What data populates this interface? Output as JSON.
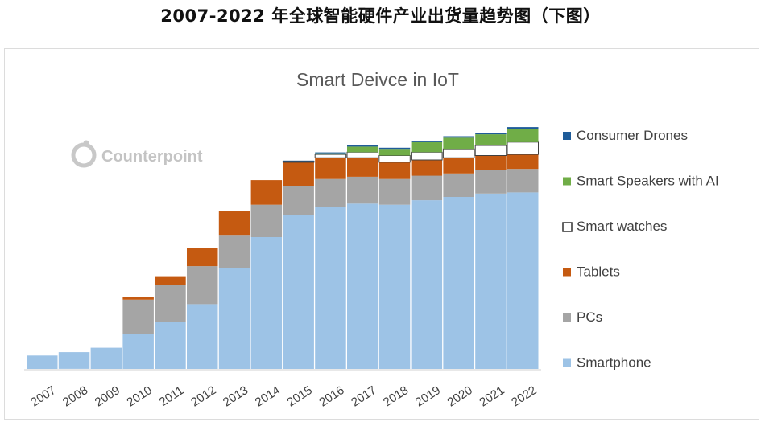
{
  "page_title": "2007-2022 年全球智能硬件产业出货量趋势图（下图）",
  "watermark": "Counterpoint",
  "chart_data": {
    "type": "bar",
    "stacked": true,
    "title": "Smart Deivce in IoT",
    "categories": [
      "2007",
      "2008",
      "2009",
      "2010",
      "2011",
      "2012",
      "2013",
      "2014",
      "2015",
      "2016",
      "2017",
      "2018",
      "2019",
      "2020",
      "2021",
      "2022"
    ],
    "series": [
      {
        "name": "Smartphone",
        "color": "#9dc3e6",
        "values": [
          0.12,
          0.15,
          0.19,
          0.31,
          0.42,
          0.58,
          0.9,
          1.18,
          1.38,
          1.45,
          1.48,
          1.47,
          1.51,
          1.54,
          1.57,
          1.58
        ]
      },
      {
        "name": "PCs",
        "color": "#a5a5a5",
        "values": [
          0,
          0,
          0,
          0.31,
          0.33,
          0.34,
          0.3,
          0.29,
          0.26,
          0.25,
          0.24,
          0.23,
          0.22,
          0.21,
          0.21,
          0.21
        ]
      },
      {
        "name": "Tablets",
        "color": "#c55a11",
        "values": [
          0,
          0,
          0,
          0.02,
          0.08,
          0.16,
          0.21,
          0.22,
          0.21,
          0.19,
          0.17,
          0.15,
          0.14,
          0.14,
          0.13,
          0.13
        ]
      },
      {
        "name": "Smart watches",
        "color": "#ffffff",
        "values": [
          0,
          0,
          0,
          0,
          0,
          0,
          0,
          0,
          0.01,
          0.03,
          0.05,
          0.06,
          0.07,
          0.08,
          0.09,
          0.11
        ]
      },
      {
        "name": "Smart Speakers with AI",
        "color": "#70ad47",
        "values": [
          0,
          0,
          0,
          0,
          0,
          0,
          0,
          0,
          0,
          0.01,
          0.05,
          0.06,
          0.09,
          0.1,
          0.1,
          0.12
        ]
      },
      {
        "name": "Consumer Drones",
        "color": "#1f5c99",
        "values": [
          0,
          0,
          0,
          0,
          0,
          0,
          0,
          0,
          0.005,
          0.008,
          0.01,
          0.01,
          0.012,
          0.013,
          0.014,
          0.015
        ]
      }
    ],
    "legend_position": "right",
    "grid": false
  }
}
